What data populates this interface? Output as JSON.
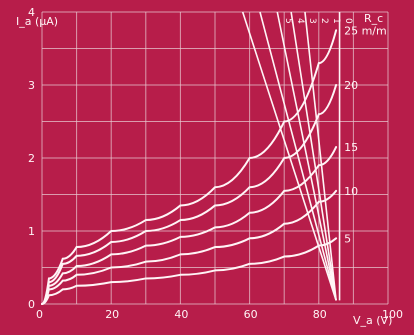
{
  "chart_data": {
    "type": "line",
    "title": "",
    "xlabel": "V_a (V)",
    "ylabel": "I_a (μA)",
    "xlim": [
      0,
      100
    ],
    "ylim": [
      0,
      4
    ],
    "x_ticks": [
      "0",
      "20",
      "40",
      "60",
      "80",
      "100"
    ],
    "y_ticks": [
      "0",
      "1",
      "2",
      "3",
      "4"
    ],
    "curve_units": "m/m",
    "curve_labels": [
      "25 m/m",
      "20",
      "15",
      "10",
      "5"
    ],
    "series": [
      {
        "name": "25 m/m",
        "x": [
          0,
          2,
          6,
          10,
          20,
          30,
          40,
          50,
          60,
          70,
          80,
          85
        ],
        "y": [
          0,
          0.35,
          0.62,
          0.78,
          1.0,
          1.15,
          1.35,
          1.6,
          2.0,
          2.5,
          3.3,
          3.75
        ]
      },
      {
        "name": "20",
        "x": [
          0,
          2,
          6,
          10,
          20,
          30,
          40,
          50,
          60,
          70,
          80,
          85
        ],
        "y": [
          0,
          0.3,
          0.55,
          0.66,
          0.85,
          1.0,
          1.15,
          1.35,
          1.6,
          2.0,
          2.6,
          3.0
        ]
      },
      {
        "name": "15",
        "x": [
          0,
          2,
          6,
          10,
          20,
          30,
          40,
          50,
          60,
          70,
          80,
          85
        ],
        "y": [
          0,
          0.25,
          0.42,
          0.52,
          0.68,
          0.8,
          0.92,
          1.05,
          1.25,
          1.55,
          1.9,
          2.15
        ]
      },
      {
        "name": "10",
        "x": [
          0,
          2,
          6,
          10,
          20,
          30,
          40,
          50,
          60,
          70,
          80,
          85
        ],
        "y": [
          0,
          0.2,
          0.32,
          0.4,
          0.5,
          0.58,
          0.68,
          0.78,
          0.9,
          1.1,
          1.4,
          1.55
        ]
      },
      {
        "name": "5",
        "x": [
          0,
          2,
          6,
          10,
          20,
          30,
          40,
          50,
          60,
          70,
          80,
          85
        ],
        "y": [
          0,
          0.12,
          0.2,
          0.25,
          0.3,
          0.35,
          0.4,
          0.46,
          0.55,
          0.65,
          0.8,
          0.9
        ]
      }
    ],
    "load_lines": {
      "label": "R_c",
      "labels": [
        "5",
        "4",
        "3",
        "2",
        "1",
        "0"
      ],
      "lines": [
        {
          "name": "5",
          "x": [
            58,
            85
          ],
          "y": [
            4,
            0.05
          ]
        },
        {
          "name": "4",
          "x": [
            63,
            85
          ],
          "y": [
            4,
            0.05
          ]
        },
        {
          "name": "3",
          "x": [
            68,
            85
          ],
          "y": [
            4,
            0.05
          ]
        },
        {
          "name": "2",
          "x": [
            72,
            85
          ],
          "y": [
            4,
            0.05
          ]
        },
        {
          "name": "1",
          "x": [
            76,
            85
          ],
          "y": [
            4,
            0.05
          ]
        },
        {
          "name": "0",
          "x": [
            86,
            86
          ],
          "y": [
            4,
            0.05
          ]
        }
      ]
    },
    "grid": true,
    "legend": "none"
  }
}
